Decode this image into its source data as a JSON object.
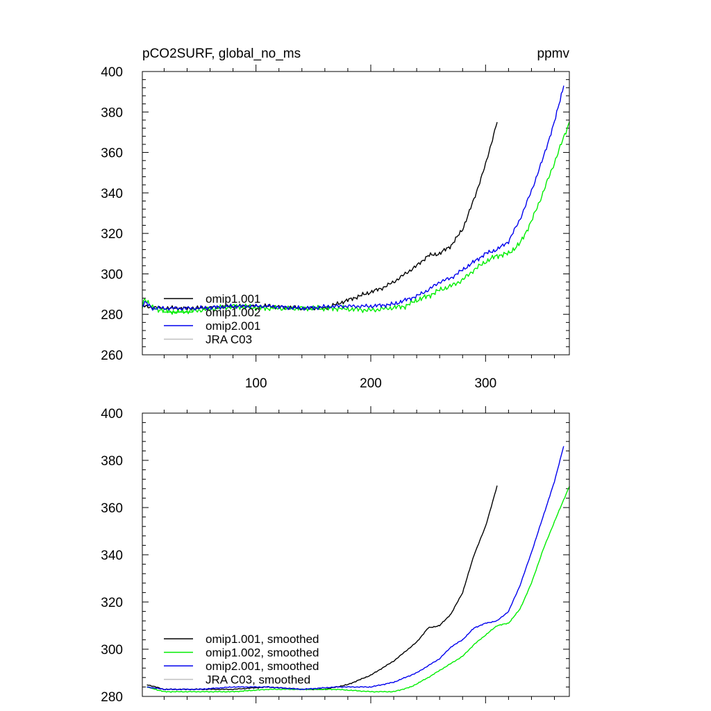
{
  "chart_data": [
    {
      "type": "line",
      "title_left": "pCO2SURF, global_no_ms",
      "title_right": "ppmv",
      "xlim": [
        1,
        373
      ],
      "ylim": [
        260,
        400
      ],
      "xticks": [
        100,
        200,
        300
      ],
      "xtick_labels": [
        "100",
        "200",
        "300"
      ],
      "yticks": [
        260,
        280,
        300,
        320,
        340,
        360,
        380,
        400
      ],
      "ytick_labels": [
        "260",
        "280",
        "300",
        "320",
        "340",
        "360",
        "380",
        "400"
      ],
      "colors": {
        "omip1_001": "#000000",
        "omip1_002": "#00ee00",
        "omip2_001": "#0000ee",
        "jra": "#c0c0c0"
      },
      "series": [
        {
          "name": "omip1.001",
          "color_key": "omip1_001",
          "noise": 1.0,
          "x": [
            1,
            20,
            50,
            80,
            110,
            140,
            160,
            170,
            180,
            190,
            200,
            210,
            220,
            230,
            240,
            250,
            260,
            270,
            280,
            290,
            300,
            310
          ],
          "y": [
            284,
            283,
            283,
            284,
            284,
            283,
            283,
            285,
            287,
            289,
            291,
            293,
            296,
            300,
            304,
            309,
            310,
            314,
            322,
            337,
            354,
            375
          ]
        },
        {
          "name": "omip1.002",
          "color_key": "omip1_002",
          "noise": 1.3,
          "x": [
            1,
            3,
            10,
            30,
            50,
            80,
            110,
            140,
            170,
            200,
            215,
            230,
            240,
            250,
            260,
            270,
            280,
            290,
            300,
            310,
            320,
            330,
            340,
            350,
            360,
            373
          ],
          "y": [
            284,
            288,
            283,
            281,
            282,
            284,
            283,
            283,
            283,
            282,
            283,
            284,
            287,
            289,
            292,
            294,
            297,
            302,
            306,
            309,
            310,
            315,
            326,
            340,
            355,
            375
          ]
        },
        {
          "name": "omip2.001",
          "color_key": "omip2_001",
          "noise": 1.0,
          "x": [
            1,
            3,
            10,
            50,
            80,
            110,
            140,
            170,
            200,
            220,
            240,
            250,
            260,
            270,
            280,
            290,
            300,
            310,
            320,
            330,
            340,
            350,
            360,
            368
          ],
          "y": [
            284,
            286,
            283,
            283,
            284,
            284,
            283,
            284,
            284,
            285,
            289,
            292,
            296,
            298,
            302,
            306,
            310,
            312,
            316,
            327,
            341,
            357,
            375,
            393
          ]
        },
        {
          "name": "JRA C03",
          "color_key": "jra",
          "noise": 0,
          "x": [],
          "y": []
        }
      ],
      "legend": [
        "omip1.001",
        "omip1.002",
        "omip2.001",
        "JRA C03"
      ]
    },
    {
      "type": "line",
      "xlim": [
        1,
        373
      ],
      "ylim": [
        280,
        400
      ],
      "xticks": [
        100,
        200,
        300
      ],
      "yticks": [
        280,
        300,
        320,
        340,
        360,
        380,
        400
      ],
      "ytick_labels": [
        "280",
        "300",
        "320",
        "340",
        "360",
        "380",
        "400"
      ],
      "series": [
        {
          "name": "omip1.001, smoothed",
          "color_key": "omip1_001",
          "noise": 0.2,
          "x": [
            5,
            20,
            50,
            80,
            110,
            140,
            160,
            180,
            200,
            220,
            240,
            250,
            260,
            270,
            280,
            290,
            300,
            310
          ],
          "y": [
            285,
            283,
            283,
            283,
            284,
            283,
            283,
            285,
            289,
            295,
            303,
            309,
            310,
            315,
            324,
            340,
            352,
            369
          ]
        },
        {
          "name": "omip1.002, smoothed",
          "color_key": "omip1_002",
          "noise": 0.2,
          "x": [
            5,
            20,
            50,
            80,
            110,
            140,
            170,
            200,
            220,
            235,
            250,
            260,
            270,
            280,
            290,
            300,
            310,
            320,
            330,
            340,
            350,
            360,
            373
          ],
          "y": [
            284,
            282,
            282,
            282,
            283,
            283,
            283,
            282,
            282,
            284,
            288,
            291,
            294,
            297,
            302,
            306,
            310,
            311,
            317,
            328,
            342,
            354,
            369
          ]
        },
        {
          "name": "omip2.001, smoothed",
          "color_key": "omip2_001",
          "noise": 0.2,
          "x": [
            5,
            20,
            50,
            80,
            110,
            140,
            170,
            200,
            220,
            240,
            250,
            260,
            270,
            280,
            290,
            300,
            310,
            320,
            330,
            340,
            350,
            360,
            368
          ],
          "y": [
            284,
            283,
            283,
            284,
            284,
            283,
            284,
            284,
            286,
            290,
            293,
            296,
            301,
            304,
            309,
            311,
            312,
            316,
            327,
            341,
            356,
            371,
            386
          ]
        },
        {
          "name": "JRA C03, smoothed",
          "color_key": "jra",
          "noise": 0,
          "x": [],
          "y": []
        }
      ],
      "legend": [
        "omip1.001, smoothed",
        "omip1.002, smoothed",
        "omip2.001, smoothed",
        "JRA C03, smoothed"
      ]
    }
  ]
}
